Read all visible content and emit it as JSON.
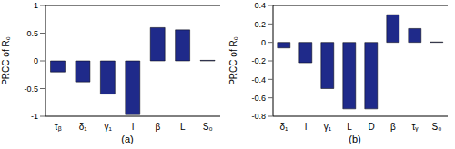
{
  "chart_data": [
    {
      "type": "bar",
      "label": "(a)",
      "y_label": "PRCC of R₀",
      "categories": [
        "τᵦ",
        "δ₁",
        "γ₁",
        "l",
        "β",
        "L",
        "S₀"
      ],
      "values": [
        -0.2,
        -0.38,
        -0.6,
        -0.97,
        0.6,
        0.56,
        0.01
      ],
      "color": "#1f2a8a",
      "ylim": [
        -1,
        1
      ],
      "yticks": [
        -1,
        -0.5,
        0,
        0.5,
        1
      ]
    },
    {
      "type": "bar",
      "label": "(b)",
      "y_label": "PRCC of R₀",
      "categories": [
        "δ₁",
        "l",
        "γ₁",
        "L",
        "D",
        "β",
        "τᵧ",
        "S₀"
      ],
      "values": [
        -0.06,
        -0.22,
        -0.5,
        -0.72,
        -0.72,
        0.3,
        0.15,
        0.005
      ],
      "color": "#1f2a8a",
      "ylim": [
        -0.8,
        0.4
      ],
      "yticks": [
        -0.8,
        -0.6,
        -0.4,
        -0.2,
        0,
        0.2,
        0.4
      ]
    }
  ]
}
